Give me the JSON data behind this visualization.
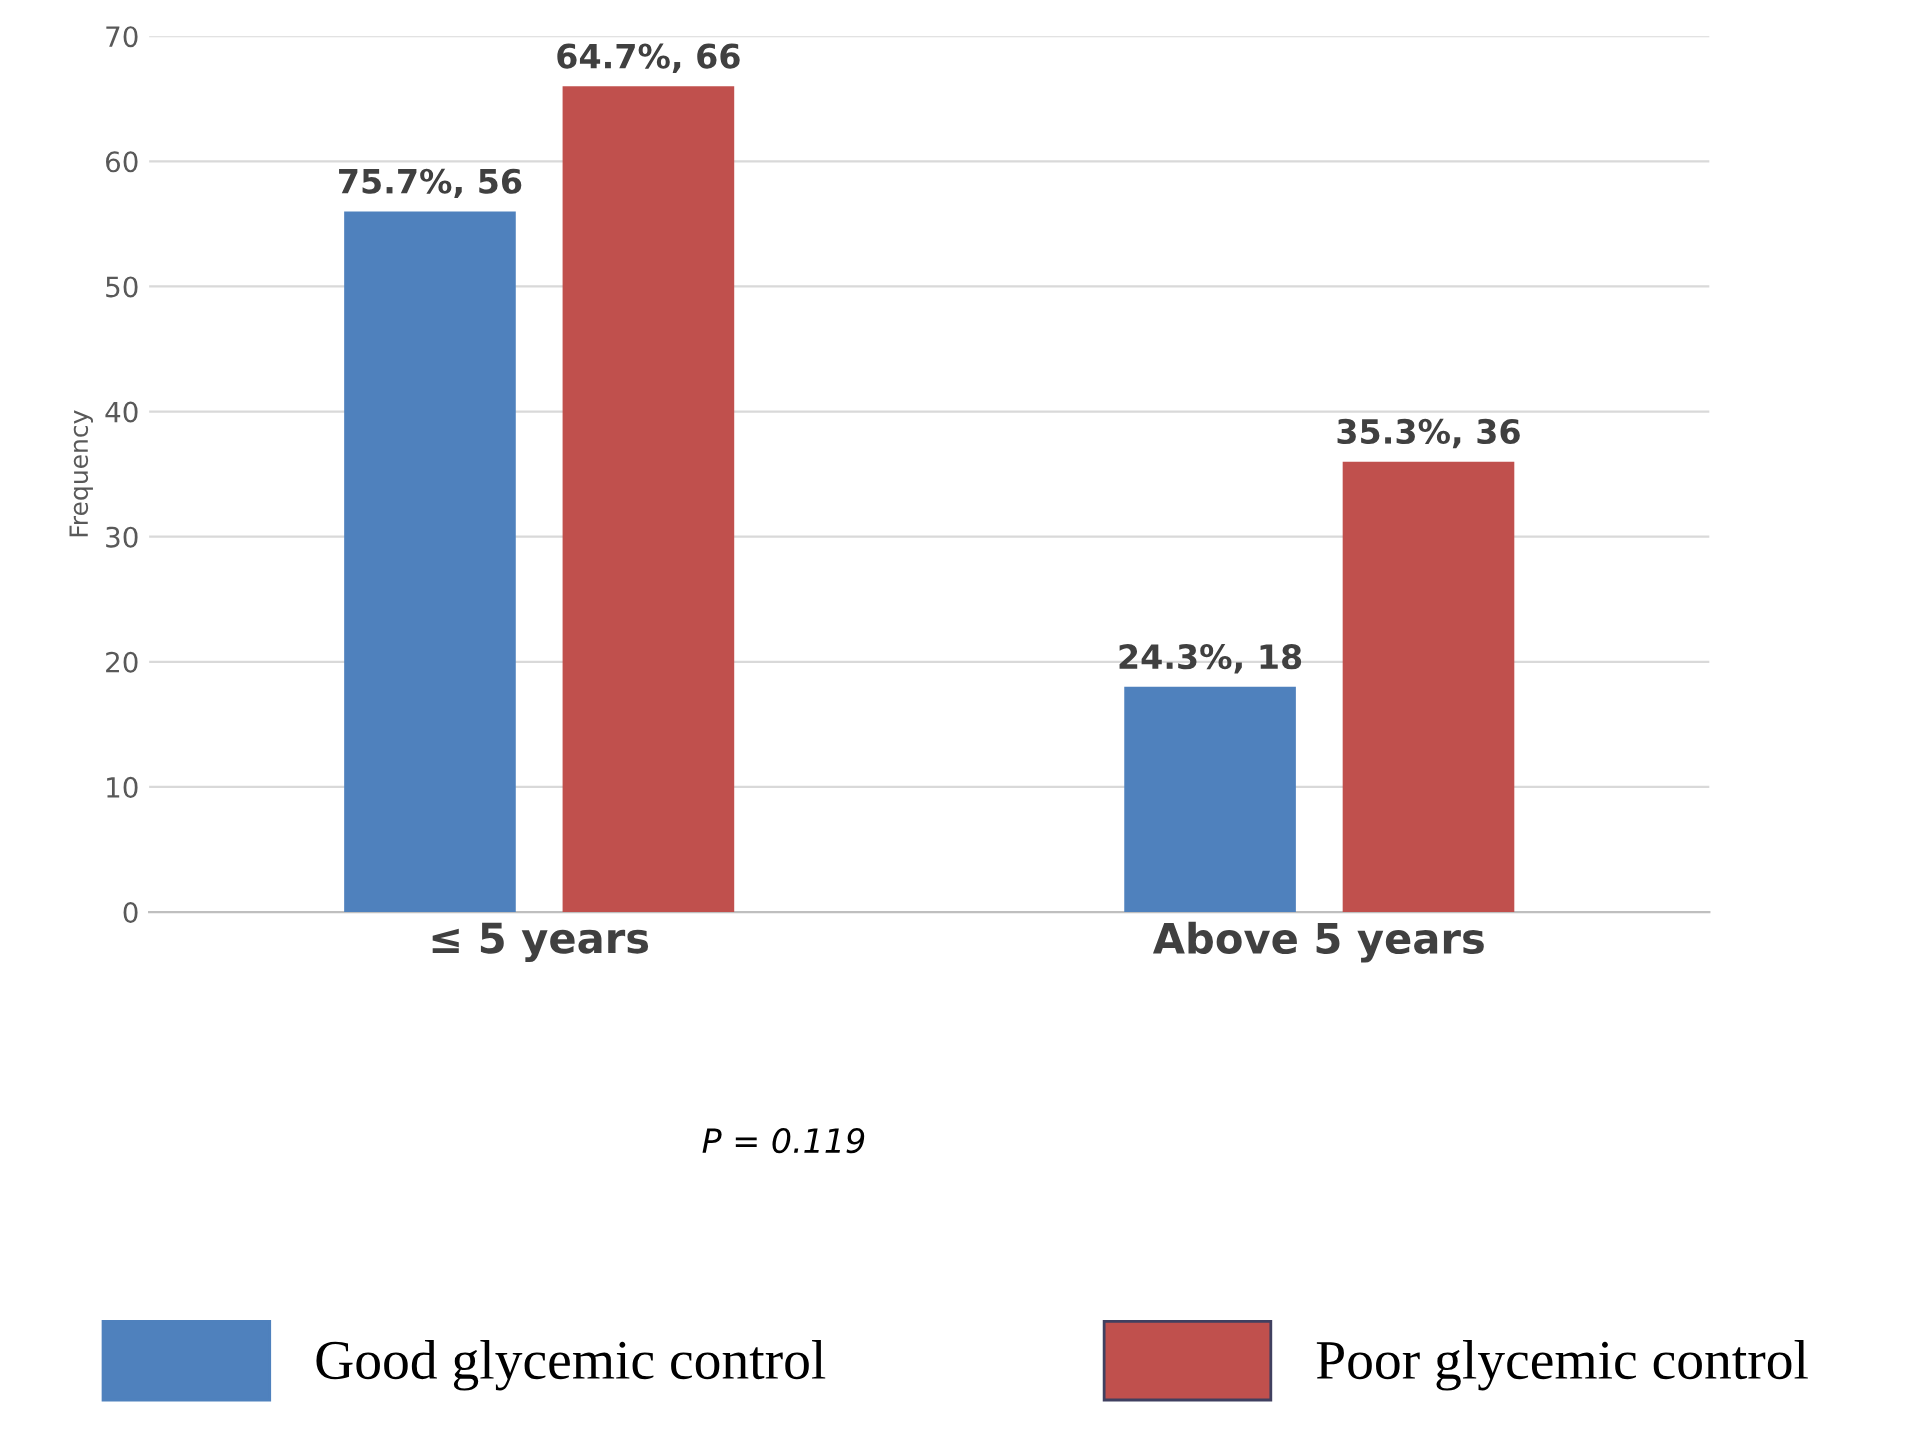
{
  "chart_data": {
    "type": "bar",
    "categories": [
      "≤ 5 years",
      "Above 5 years"
    ],
    "ylabel": "Frequency",
    "ylim": [
      0,
      70
    ],
    "yticks": [
      0,
      10,
      20,
      30,
      40,
      50,
      60,
      70
    ],
    "grid": "y",
    "legend": "bottom",
    "series": [
      {
        "name": "Good glycemic control",
        "color": "#4f81bd",
        "values": [
          56,
          18
        ],
        "value_labels": [
          "75.7%, 56",
          "24.3%, 18"
        ]
      },
      {
        "name": "Poor glycemic control",
        "color": "#c0504d",
        "values": [
          66,
          36
        ],
        "value_labels": [
          "64.7%, 66",
          "35.3%, 36"
        ]
      }
    ],
    "annotations": [
      "P = 0.119"
    ]
  }
}
